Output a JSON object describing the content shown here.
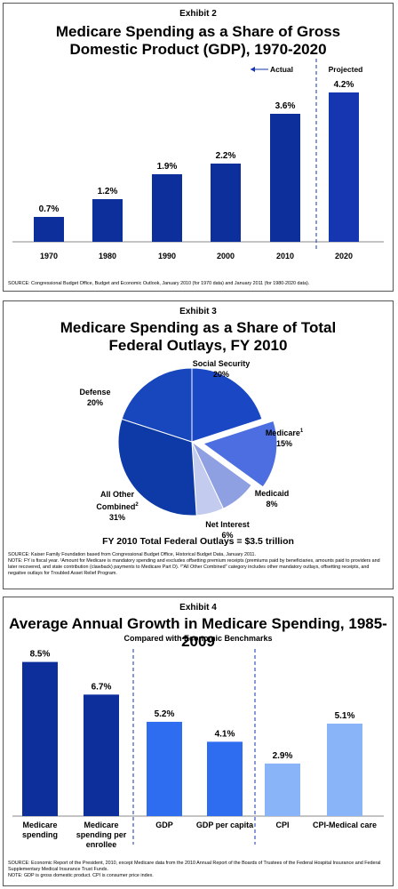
{
  "chart_data": [
    {
      "type": "bar",
      "exhibit": "Exhibit 2",
      "title": "Medicare Spending as a Share of Gross Domestic Product (GDP), 1970-2020",
      "categories": [
        "1970",
        "1980",
        "1990",
        "2000",
        "2010",
        "2020"
      ],
      "values": [
        0.7,
        1.2,
        1.9,
        2.2,
        3.6,
        4.2
      ],
      "value_labels": [
        "0.7%",
        "1.2%",
        "1.9%",
        "2.2%",
        "3.6%",
        "4.2%"
      ],
      "colors": [
        "#0c2f9c",
        "#0c2f9c",
        "#0c2f9c",
        "#0c2f9c",
        "#0c2f9c",
        "#1536b0"
      ],
      "annotations": [
        "Actual",
        "Projected"
      ],
      "source": "SOURCE:  Congressional Budget Office, Budget and Economic Outlook, January 2010 (for 1970 data) and January 2011 (for 1980-2020 data)."
    },
    {
      "type": "pie",
      "exhibit": "Exhibit 3",
      "title": "Medicare Spending as a Share of Total Federal Outlays, FY 2010",
      "slices": [
        {
          "name": "Social Security",
          "value": 20,
          "value_label": "20%",
          "color": "#1a48c4"
        },
        {
          "name": "Medicare",
          "footnote": "1",
          "value": 15,
          "value_label": "15%",
          "color": "#4c6ee0"
        },
        {
          "name": "Medicaid",
          "value": 8,
          "value_label": "8%",
          "color": "#8e9fe2"
        },
        {
          "name": "Net Interest",
          "value": 6,
          "value_label": "6%",
          "color": "#c3cbef"
        },
        {
          "name": "All Other Combined",
          "footnote": "2",
          "value": 31,
          "value_label": "31%",
          "color": "#0d3aa6"
        },
        {
          "name": "Defense",
          "value": 20,
          "value_label": "20%",
          "color": "#1846bc"
        }
      ],
      "subtitle": "FY 2010 Total Federal Outlays = $3.5 trillion",
      "source": "SOURCE:  Kaiser Family Foundation based from Congressional Budget Office, Historical Budget Data, January 2011.",
      "note": "NOTE: FY is fiscal year. ¹Amount for Medicare is mandatory spending and excludes offsetting premium receipts (premiums paid by beneficiaries, amounts paid to providers and later recovered, and state contribution (clawback) payments to Medicare Part D). ²\"All Other Combined\" category includes other mandatory outlays, offsetting receipts, and negative outlays for Troubled Asset Relief Program."
    },
    {
      "type": "bar",
      "exhibit": "Exhibit 4",
      "title": "Average Annual Growth in Medicare Spending, 1985-2009",
      "subtitle": "Compared with Economic Benchmarks",
      "categories": [
        "Medicare spending",
        "Medicare spending per enrollee",
        "GDP",
        "GDP per capita",
        "CPI",
        "CPI-Medical care"
      ],
      "values": [
        8.5,
        6.7,
        5.2,
        4.1,
        2.9,
        5.1
      ],
      "value_labels": [
        "8.5%",
        "6.7%",
        "5.2%",
        "4.1%",
        "2.9%",
        "5.1%"
      ],
      "colors": [
        "#0c2f9c",
        "#0c2f9c",
        "#2e6cf0",
        "#2e6cf0",
        "#8ab4f8",
        "#8ab4f8"
      ],
      "source": "SOURCE:  Economic Report of the President, 2010, except Medicare data from the 2010 Annual Report of the Boards of Trustees of the Federal Hospital Insurance and Federal Supplementary Medical Insurance Trust Funds.",
      "note": "NOTE:  GDP is gross domestic product. CPI is consumer price index."
    }
  ]
}
